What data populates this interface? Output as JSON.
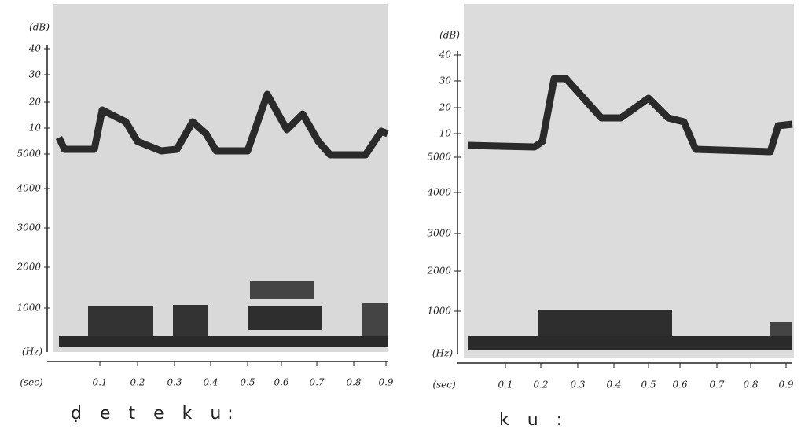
{
  "panels": [
    {
      "db_label": "(dB)",
      "db_ticks": [
        "40",
        "30",
        "20",
        "10"
      ],
      "hz_ticks": [
        "5000",
        "4000",
        "3000",
        "2000",
        "1000"
      ],
      "hz_label": "(Hz)",
      "sec_label": "(sec)",
      "sec_ticks": [
        "0.1",
        "0.2",
        "0.3",
        "0.4",
        "0.5",
        "0.6",
        "0.7",
        "0.8",
        "0.9"
      ],
      "transcription": "ḍ e t e k u:"
    },
    {
      "db_label": "(dB)",
      "db_ticks": [
        "40",
        "30",
        "20",
        "10"
      ],
      "hz_ticks": [
        "5000",
        "4000",
        "3000",
        "2000",
        "1000"
      ],
      "hz_label": "(Hz)",
      "sec_label": "(sec)",
      "sec_ticks": [
        "0.1",
        "0.2",
        "0.3",
        "0.4",
        "0.5",
        "0.6",
        "0.7",
        "0.8",
        "0.9"
      ],
      "transcription": "k u :"
    }
  ]
}
